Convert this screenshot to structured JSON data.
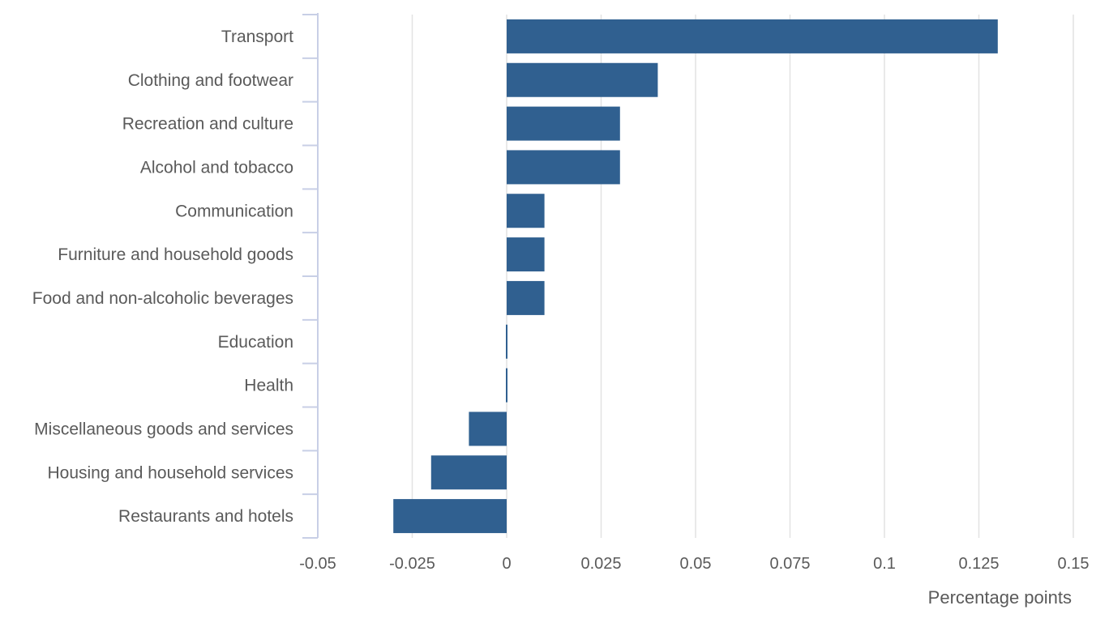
{
  "chart_data": {
    "type": "bar",
    "orientation": "horizontal",
    "categories": [
      "Transport",
      "Clothing and footwear",
      "Recreation and culture",
      "Alcohol and tobacco",
      "Communication",
      "Furniture and household goods",
      "Food and non-alcoholic beverages",
      "Education",
      "Health",
      "Miscellaneous goods and services",
      "Housing and household services",
      "Restaurants and hotels"
    ],
    "values": [
      0.13,
      0.04,
      0.03,
      0.03,
      0.01,
      0.01,
      0.01,
      0.0,
      0.0,
      -0.01,
      -0.02,
      -0.03
    ],
    "xlabel": "Percentage points",
    "ylabel": "",
    "xlim": [
      -0.05,
      0.15
    ],
    "ticks": [
      -0.05,
      -0.025,
      0,
      0.025,
      0.05,
      0.075,
      0.1,
      0.125,
      0.15
    ],
    "tick_labels": [
      "-0.05",
      "-0.025",
      "0",
      "0.025",
      "0.05",
      "0.075",
      "0.1",
      "0.125",
      "0.15"
    ],
    "grid": "vertical",
    "legend": "none",
    "bar_color": "#306090",
    "grid_color": "#e2e2e2",
    "axis_color": "#c8cfe6"
  }
}
